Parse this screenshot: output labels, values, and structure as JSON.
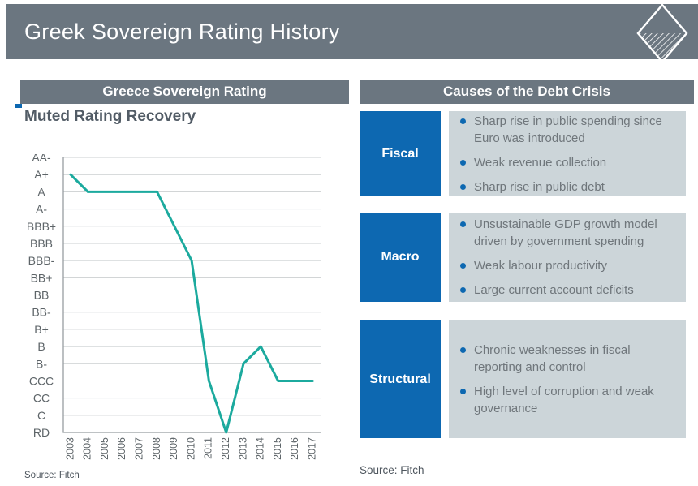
{
  "slide": {
    "title": "Greek Sovereign Rating History"
  },
  "left_panel": {
    "header": "Greece Sovereign Rating",
    "subtitle": "Muted Rating Recovery",
    "source": "Source: Fitch"
  },
  "chart_data": {
    "type": "line",
    "title": "Muted Rating Recovery",
    "years": [
      2003,
      2004,
      2005,
      2006,
      2007,
      2008,
      2009,
      2010,
      2011,
      2012,
      2013,
      2014,
      2015,
      2016,
      2017
    ],
    "y_axis_levels_top_to_bottom": [
      "AA-",
      "A+",
      "A",
      "A-",
      "BBB+",
      "BBB",
      "BBB-",
      "BB+",
      "BB",
      "BB-",
      "B+",
      "B",
      "B-",
      "CCC",
      "CC",
      "C",
      "RD"
    ],
    "series": [
      {
        "name": "Greece sovereign rating (Fitch)",
        "values": [
          "A+",
          "A",
          "A",
          "A",
          "A",
          "A",
          "BBB+",
          "BBB-",
          "CCC",
          "RD",
          "B-",
          "B",
          "CCC",
          "CCC",
          "CCC"
        ]
      }
    ],
    "grid": true,
    "legend": "none",
    "line_color": "#1caa9e"
  },
  "right_panel": {
    "header": "Causes of the Debt Crisis",
    "source": "Source: Fitch",
    "sections": [
      {
        "label": "Fiscal",
        "bullets": [
          "Sharp rise in public spending since Euro was introduced",
          "Weak revenue collection",
          "Sharp rise in public debt"
        ]
      },
      {
        "label": "Macro",
        "bullets": [
          "Unsustainable GDP growth model driven by government spending",
          "Weak labour productivity",
          "Large current account deficits"
        ]
      },
      {
        "label": "Structural",
        "bullets": [
          "Chronic weaknesses in fiscal reporting and control",
          "High level of corruption and weak governance"
        ]
      }
    ]
  },
  "colors": {
    "banner_gray": "#6b7680",
    "accent_blue": "#0d68b1",
    "bullet_box_gray": "#ccd5d9",
    "line_teal": "#1caa9e"
  }
}
